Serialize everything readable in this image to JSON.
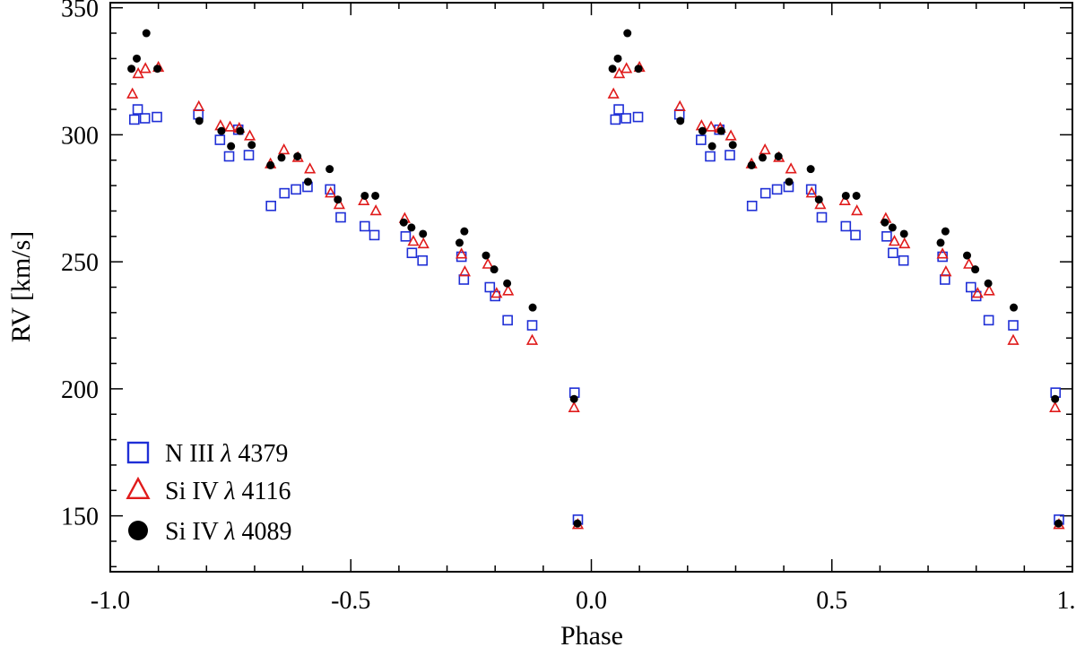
{
  "chart_data": {
    "type": "scatter",
    "xlabel": "Phase",
    "ylabel": "RV [km/s]",
    "xlim": [
      -1.0,
      1.0
    ],
    "ylim": [
      128,
      352
    ],
    "grid": false,
    "legend_position": "bottom-left",
    "x_ticks": [
      {
        "value": -1.0,
        "label": "-1.0"
      },
      {
        "value": -0.5,
        "label": "-0.5"
      },
      {
        "value": 0.0,
        "label": "0.0"
      },
      {
        "value": 0.5,
        "label": "0.5"
      },
      {
        "value": 1.0,
        "label": "1.0"
      }
    ],
    "y_ticks": [
      {
        "value": 150,
        "label": "150"
      },
      {
        "value": 200,
        "label": "200"
      },
      {
        "value": 250,
        "label": "250"
      },
      {
        "value": 300,
        "label": "300"
      },
      {
        "value": 350,
        "label": "350"
      }
    ],
    "series": [
      {
        "name": "N III λ 4379",
        "legend": {
          "prefix": "N III ",
          "lambda": "λ",
          "suffix": " 4379"
        },
        "marker": "square",
        "color": "#1f2fd6",
        "x": [
          0.05,
          0.057,
          0.072,
          0.097,
          0.183,
          0.228,
          0.247,
          0.266,
          0.288,
          0.334,
          0.362,
          0.386,
          0.41,
          0.457,
          0.479,
          0.529,
          0.549,
          0.614,
          0.627,
          0.649,
          0.73,
          0.735,
          0.789,
          0.8,
          0.826,
          0.877,
          0.965,
          0.972
        ],
        "y": [
          306,
          310,
          306.5,
          307,
          308,
          298,
          291.5,
          302,
          292,
          272,
          277,
          278.5,
          279.5,
          278.5,
          267.5,
          264,
          260.5,
          260,
          253.5,
          250.5,
          252,
          243,
          240,
          236.5,
          227,
          225,
          198.5,
          148.5
        ]
      },
      {
        "name": "Si IV λ 4116",
        "legend": {
          "prefix": "Si IV ",
          "lambda": "λ",
          "suffix": " 4116"
        },
        "marker": "triangle",
        "color": "#e01b1b",
        "x": [
          0.046,
          0.058,
          0.073,
          0.1,
          0.184,
          0.229,
          0.249,
          0.268,
          0.29,
          0.333,
          0.361,
          0.39,
          0.415,
          0.458,
          0.476,
          0.527,
          0.552,
          0.612,
          0.63,
          0.651,
          0.73,
          0.737,
          0.785,
          0.803,
          0.827,
          0.877,
          0.964,
          0.972
        ],
        "y": [
          316,
          324,
          326,
          326.5,
          311,
          303.5,
          303,
          302.5,
          299.5,
          288.5,
          294,
          291,
          286.5,
          277,
          272.5,
          274,
          270,
          267,
          258,
          257,
          253,
          246,
          249,
          237.5,
          238.5,
          219,
          192.5,
          146.5
        ]
      },
      {
        "name": "Si IV λ 4089",
        "legend": {
          "prefix": "Si IV ",
          "lambda": "λ",
          "suffix": " 4089"
        },
        "marker": "circle",
        "color": "#000000",
        "x": [
          0.044,
          0.055,
          0.075,
          0.098,
          0.185,
          0.231,
          0.251,
          0.27,
          0.294,
          0.333,
          0.356,
          0.389,
          0.411,
          0.456,
          0.473,
          0.529,
          0.551,
          0.61,
          0.626,
          0.65,
          0.726,
          0.736,
          0.781,
          0.798,
          0.825,
          0.878,
          0.964,
          0.971
        ],
        "y": [
          326,
          330,
          340,
          326,
          305.5,
          301.5,
          295.5,
          301.5,
          296,
          288,
          291,
          291.5,
          281.5,
          286.5,
          274.5,
          276,
          276,
          265.5,
          263.5,
          261,
          257.5,
          262,
          252.5,
          247,
          241.5,
          232,
          196,
          147
        ]
      }
    ]
  }
}
